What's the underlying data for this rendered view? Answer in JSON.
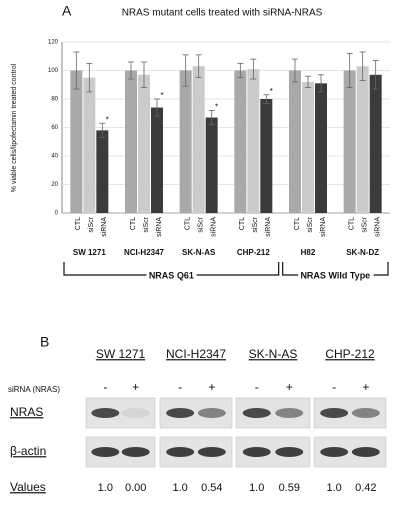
{
  "chart_data": {
    "type": "bar",
    "panel_label": "A",
    "title": "NRAS mutant cells treated with siRNA-NRAS",
    "y_label": "% viable cells/lipofectamin treated control",
    "categories": [
      "SW 1271",
      "NCI-H2347",
      "SK-N-AS",
      "CHP-212",
      "H82",
      "SK-N-DZ"
    ],
    "series": [
      {
        "name": "CTL",
        "color": "#a9a9a9",
        "values": [
          100,
          100,
          100,
          100,
          100,
          100
        ],
        "errors": [
          13,
          6,
          11,
          5,
          8,
          12
        ]
      },
      {
        "name": "siScr",
        "color": "#cbcbcb",
        "values": [
          95,
          97,
          103,
          101,
          92,
          103
        ],
        "errors": [
          10,
          9,
          8,
          7,
          4,
          10
        ]
      },
      {
        "name": "siRNA",
        "color": "#3b3b3b",
        "values": [
          58,
          74,
          67,
          80,
          91,
          97
        ],
        "errors": [
          5,
          6,
          5,
          3,
          6,
          10
        ],
        "markers": [
          "*",
          "*",
          "*",
          "*",
          null,
          null
        ]
      }
    ],
    "groups": [
      {
        "label": "NRAS Q61",
        "from": 0,
        "to": 3
      },
      {
        "label": "NRAS Wild Type",
        "from": 4,
        "to": 5
      }
    ],
    "ylim": [
      0,
      120
    ],
    "yticks": [
      0,
      20,
      40,
      60,
      80,
      100,
      120
    ],
    "grid": true
  },
  "blot": {
    "panel_label": "B",
    "cell_lines": [
      "SW 1271",
      "NCI-H2347",
      "SK-N-AS",
      "CHP-212"
    ],
    "condition": "siRNA (NRAS)",
    "signs": [
      "-",
      "+"
    ],
    "rows": [
      "NRAS",
      "β-actin"
    ],
    "values_label": "Values",
    "values": [
      [
        "1.0",
        "0.00"
      ],
      [
        "1.0",
        "0.54"
      ],
      [
        "1.0",
        "0.59"
      ],
      [
        "1.0",
        "0.42"
      ]
    ]
  }
}
